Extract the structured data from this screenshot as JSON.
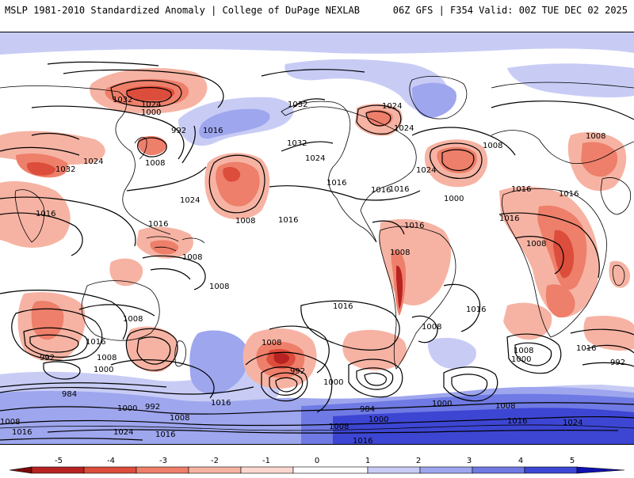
{
  "header": {
    "left": "MSLP 1981-2010 Standardized Anomaly | College of DuPage NEXLAB",
    "right": "06Z GFS | F354 Valid: 00Z TUE DEC 02 2025"
  },
  "colors": {
    "ocean_bg": "#ffffff",
    "coast": "#000000",
    "neg1": "#f6b3a3",
    "neg2": "#ee7f6a",
    "neg3": "#dd4d3b",
    "neg4": "#b82222",
    "neg5": "#7a0a0a",
    "pos1": "#c8ccf5",
    "pos2": "#9ea6ee",
    "pos3": "#6f7ae4",
    "pos4": "#3d46d3",
    "pos5": "#1010b0"
  },
  "isobar_labels": [
    "1032",
    "1024",
    "1000",
    "992",
    "1016",
    "1032",
    "1024",
    "1032",
    "1024",
    "1024",
    "1016",
    "1008",
    "1024",
    "1016",
    "1008",
    "1000",
    "1016",
    "1008",
    "1024",
    "1024",
    "1016",
    "1016",
    "1008",
    "1008",
    "1016",
    "1032",
    "1016",
    "1016",
    "1008",
    "1016",
    "1008",
    "1008",
    "1008",
    "1008",
    "1016",
    "1016",
    "1000",
    "992",
    "984",
    "992",
    "1008",
    "1000",
    "1016",
    "1000",
    "992",
    "1008",
    "992",
    "1000",
    "984",
    "1008",
    "1000",
    "1000",
    "1016",
    "1008",
    "1008",
    "1024",
    "1016",
    "1016",
    "1024",
    "1024",
    "1016",
    "1032",
    "1008",
    "1016",
    "1008",
    "1016",
    "1016"
  ],
  "colorbar": {
    "ticks": [
      "-5",
      "-4",
      "-3",
      "-2",
      "-1",
      "0",
      "1",
      "2",
      "3",
      "4",
      "5"
    ]
  }
}
